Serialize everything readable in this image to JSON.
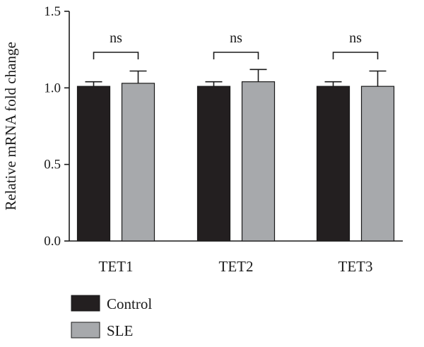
{
  "chart_data": {
    "type": "bar",
    "title": "",
    "xlabel": "",
    "ylabel": "Relative mRNA fold change",
    "ylim": [
      0,
      1.5
    ],
    "yticks": [
      "0.0",
      "0.5",
      "1.0",
      "1.5"
    ],
    "categories": [
      "TET1",
      "TET2",
      "TET3"
    ],
    "series": [
      {
        "name": "Control",
        "color": "#231f20",
        "values": [
          1.01,
          1.01,
          1.01
        ],
        "errors": [
          0.03,
          0.03,
          0.03
        ]
      },
      {
        "name": "SLE",
        "color": "#a7a9ac",
        "values": [
          1.03,
          1.04,
          1.01
        ],
        "errors": [
          0.08,
          0.08,
          0.1
        ]
      }
    ],
    "significance": [
      "ns",
      "ns",
      "ns"
    ],
    "grid": false,
    "error_bars": "upper",
    "legend_position": "bottom-left"
  }
}
